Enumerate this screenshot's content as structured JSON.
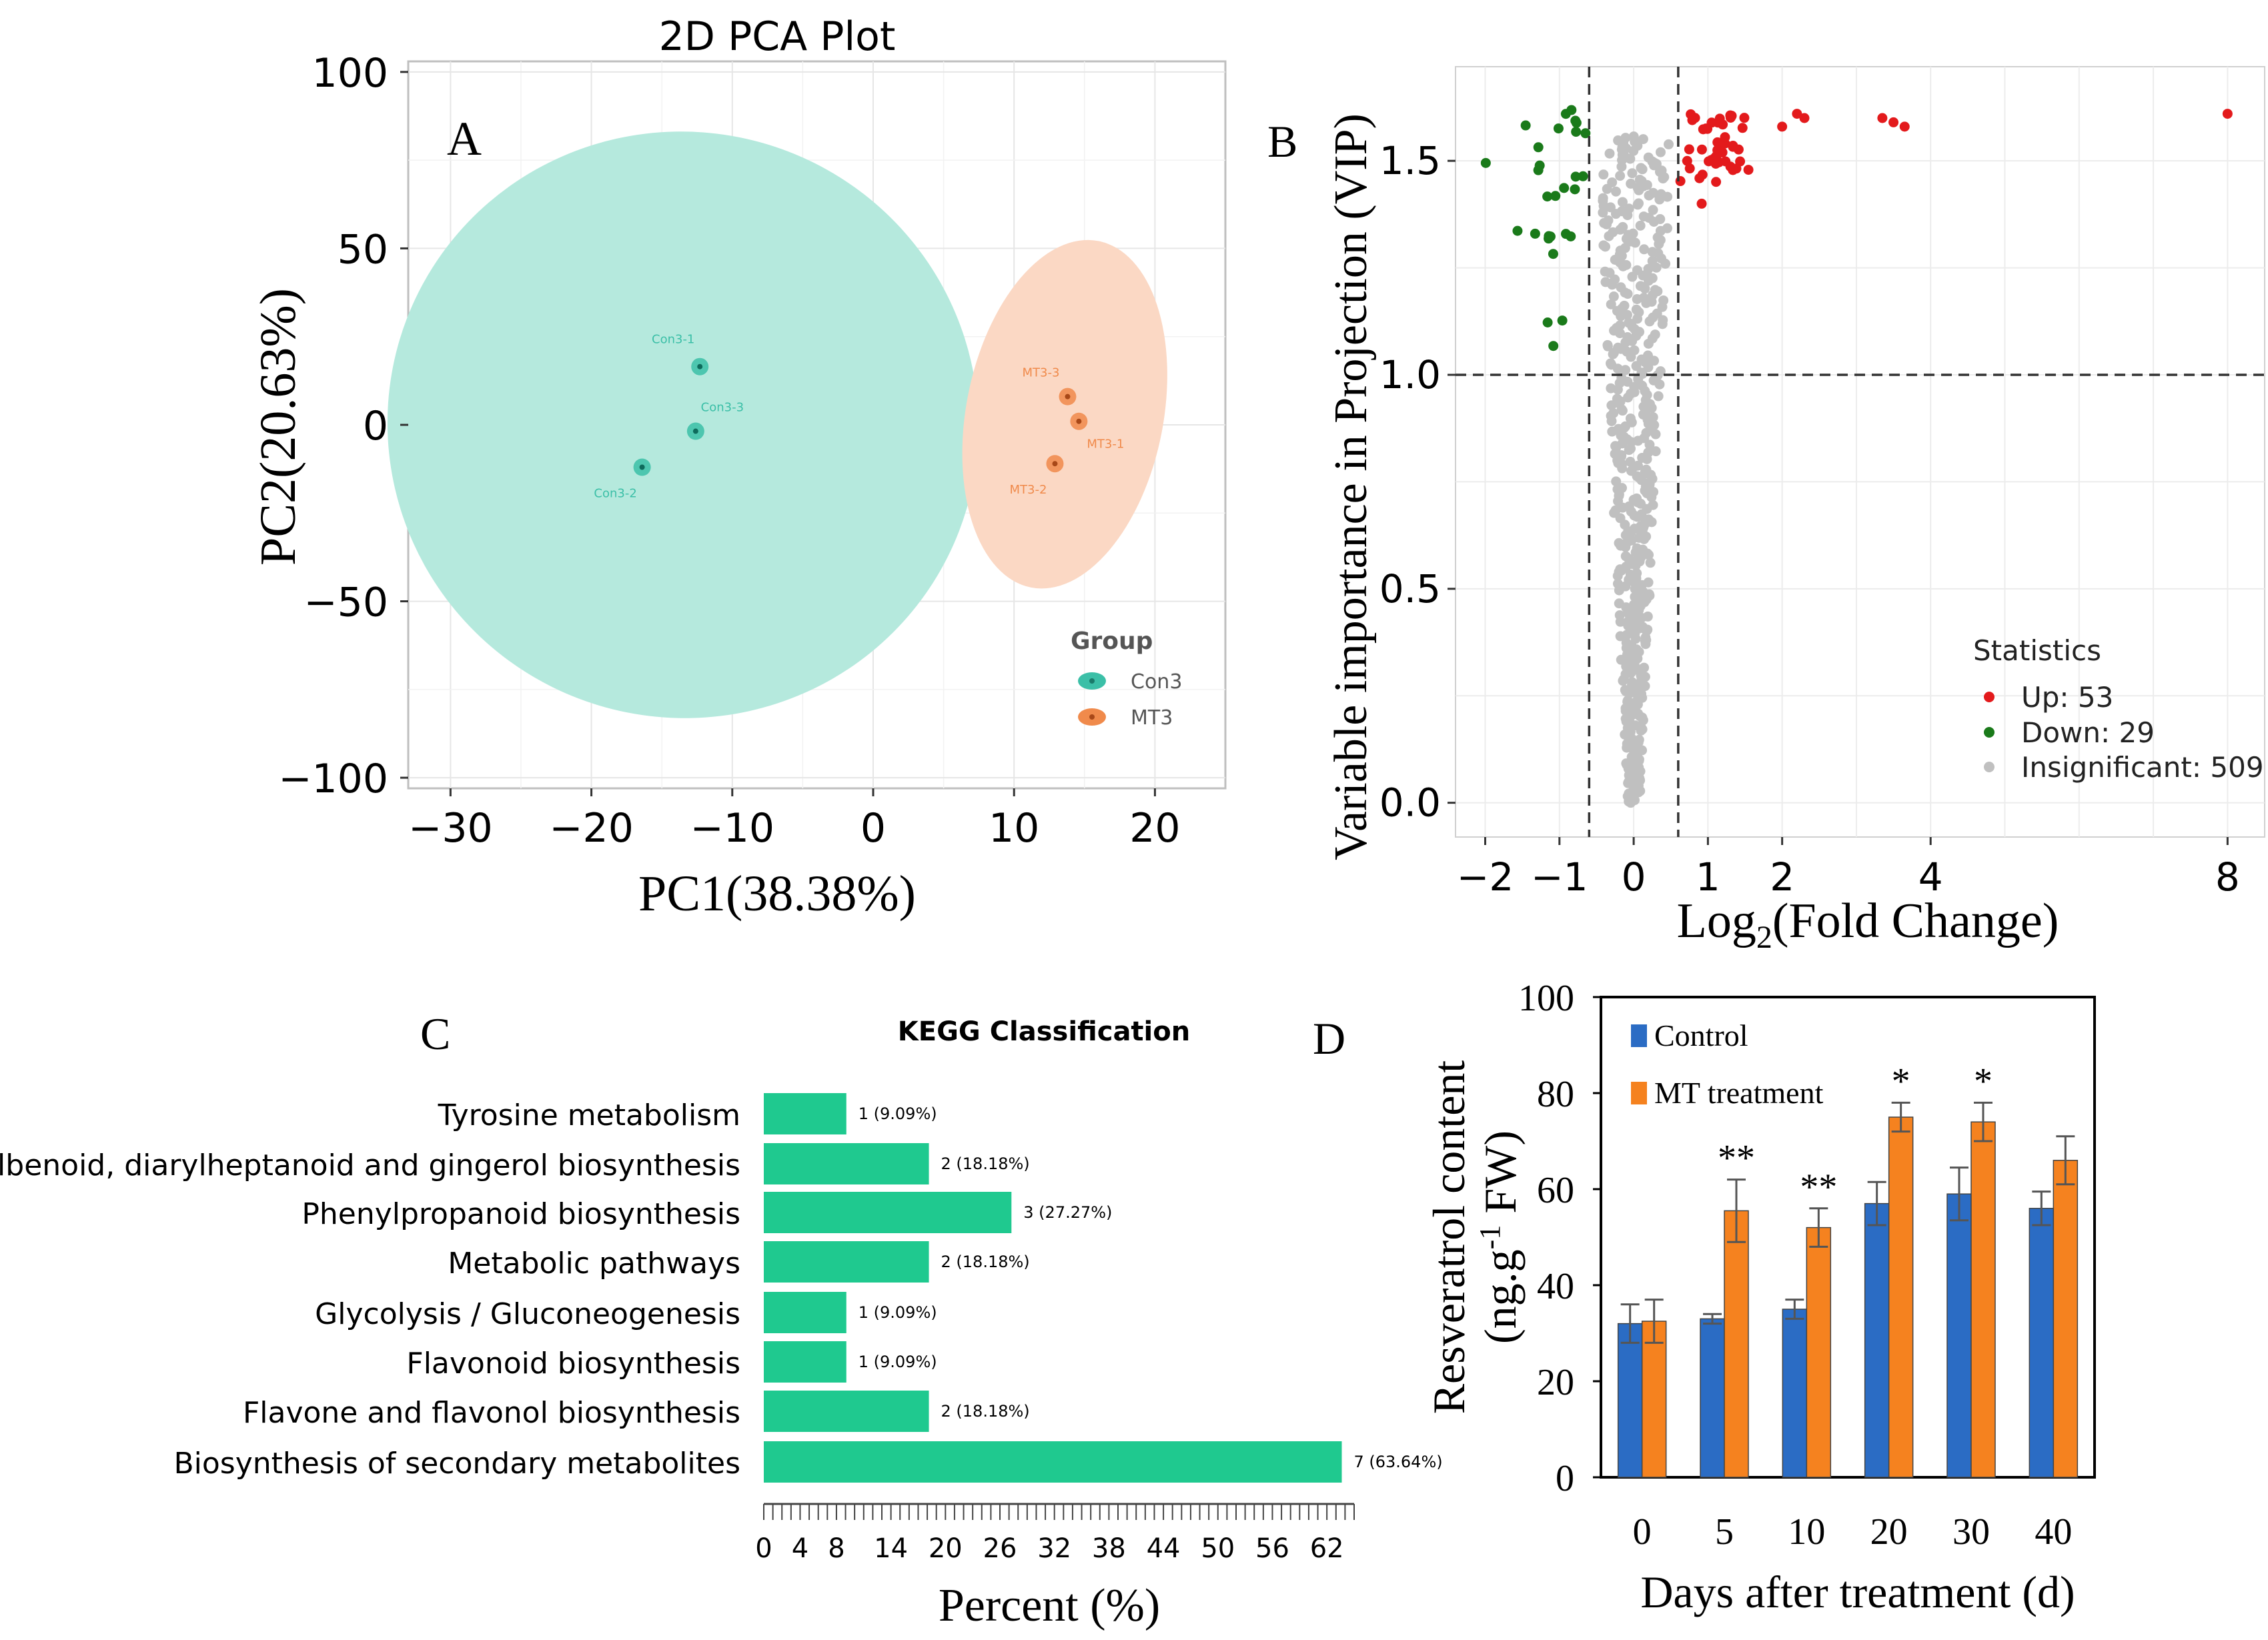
{
  "chart_data": [
    {
      "type": "scatter",
      "panel": "A",
      "title": "2D PCA Plot",
      "xlabel": "PC1(38.38%)",
      "ylabel": "PC2(20.63%)",
      "xlim": [
        -33,
        25
      ],
      "ylim": [
        -103,
        103
      ],
      "xticks": [
        -30,
        -20,
        -10,
        0,
        10,
        20
      ],
      "yticks": [
        100,
        50,
        0,
        -50,
        -100
      ],
      "xtick_labels": [
        "−30",
        "−20",
        "−10",
        "0",
        "10",
        "20"
      ],
      "ytick_labels": [
        "100",
        "50",
        "0",
        "−50",
        "−100"
      ],
      "legend_title": "Group",
      "groups": [
        {
          "name": "Con3",
          "color": "#3bbfa7",
          "ellipse_color": "#b5e9dd",
          "ellipse": {
            "cx": -13.5,
            "cy": 0,
            "rx": 21,
            "ry": 83,
            "angle": 21
          },
          "points": [
            {
              "label": "Con3-1",
              "x": -12.3,
              "y": 16.5
            },
            {
              "label": "Con3-3",
              "x": -12.6,
              "y": -1.8
            },
            {
              "label": "Con3-2",
              "x": -16.4,
              "y": -12
            }
          ]
        },
        {
          "name": "MT3",
          "color": "#f08a4b",
          "ellipse_color": "#fbd8c4",
          "ellipse": {
            "cx": 13.6,
            "cy": 3,
            "rx": 7,
            "ry": 50,
            "angle": 11
          },
          "points": [
            {
              "label": "MT3-3",
              "x": 13.8,
              "y": 8
            },
            {
              "label": "MT3-1",
              "x": 14.6,
              "y": 1
            },
            {
              "label": "MT3-2",
              "x": 12.9,
              "y": -11
            }
          ]
        }
      ]
    },
    {
      "type": "scatter",
      "panel": "B",
      "xlabel_prefix": "Log",
      "xlabel_sub": "2",
      "xlabel_suffix": "(Fold Change)",
      "ylabel": "Variable importance in Projection (VIP)",
      "xlim": [
        -2.4,
        8.5
      ],
      "ylim": [
        -0.08,
        1.72
      ],
      "xticks": [
        -2,
        -1,
        0,
        1,
        2,
        4,
        8
      ],
      "xtick_labels": [
        "−2",
        "−1",
        "0",
        "1",
        "2",
        "4",
        "8"
      ],
      "yticks": [
        0.0,
        0.5,
        1.0,
        1.5
      ],
      "ytick_labels": [
        "0.0",
        "0.5",
        "1.0",
        "1.5"
      ],
      "vlines": [
        -0.6,
        0.6
      ],
      "hline": 1.0,
      "legend_title": "Statistics",
      "series": [
        {
          "name": "Up",
          "count": 53,
          "label": "Up: 53",
          "color": "#e31a1c"
        },
        {
          "name": "Down",
          "count": 29,
          "label": "Down: 29",
          "color": "#1a7a1a"
        },
        {
          "name": "Insignificant",
          "count": 509,
          "label": "Insignificant: 509",
          "color": "#c0c0c0"
        }
      ]
    },
    {
      "type": "bar",
      "panel": "C",
      "orientation": "horizontal",
      "title": "KEGG Classification",
      "xlabel": "Percent (%)",
      "xlim": [
        0,
        65
      ],
      "xticks": [
        0,
        4,
        8,
        14,
        20,
        26,
        32,
        38,
        44,
        50,
        56,
        62
      ],
      "bar_color": "#1fc98f",
      "categories": [
        "Tyrosine metabolism",
        "Stilbenoid, diarylheptanoid and gingerol biosynthesis",
        "Phenylpropanoid biosynthesis",
        "Metabolic pathways",
        "Glycolysis / Gluconeogenesis",
        "Flavonoid biosynthesis",
        "Flavone and flavonol biosynthesis",
        "Biosynthesis of secondary metabolites"
      ],
      "values": [
        9.09,
        18.18,
        27.27,
        18.18,
        9.09,
        9.09,
        18.18,
        63.64
      ],
      "data_labels": [
        "1 (9.09%)",
        "2 (18.18%)",
        "3 (27.27%)",
        "2 (18.18%)",
        "1 (9.09%)",
        "1 (9.09%)",
        "2 (18.18%)",
        "7 (63.64%)"
      ]
    },
    {
      "type": "bar",
      "panel": "D",
      "xlabel": "Days after treatment (d)",
      "ylabel_line1": "Resveratrol content",
      "ylabel_line2_prefix": "(ng.g",
      "ylabel_line2_sup": "-1",
      "ylabel_line2_suffix": " FW)",
      "ylim": [
        0,
        100
      ],
      "yticks": [
        0,
        20,
        40,
        60,
        80,
        100
      ],
      "categories": [
        "0",
        "5",
        "10",
        "20",
        "30",
        "40"
      ],
      "series": [
        {
          "name": "Control",
          "color": "#2b6cc4",
          "values": [
            32,
            33,
            35,
            57,
            59,
            56
          ],
          "errors": [
            4,
            1,
            2,
            4.5,
            5.5,
            3.5
          ]
        },
        {
          "name": "MT treatment",
          "color": "#f5821f",
          "values": [
            32.5,
            55.5,
            52,
            75,
            74,
            66
          ],
          "errors": [
            4.5,
            6.5,
            4,
            3,
            4,
            5
          ]
        }
      ],
      "significance": [
        "",
        "**",
        "**",
        "*",
        "*",
        ""
      ]
    }
  ],
  "panel_labels": {
    "a": "A",
    "b": "B",
    "c": "C",
    "d": "D"
  }
}
